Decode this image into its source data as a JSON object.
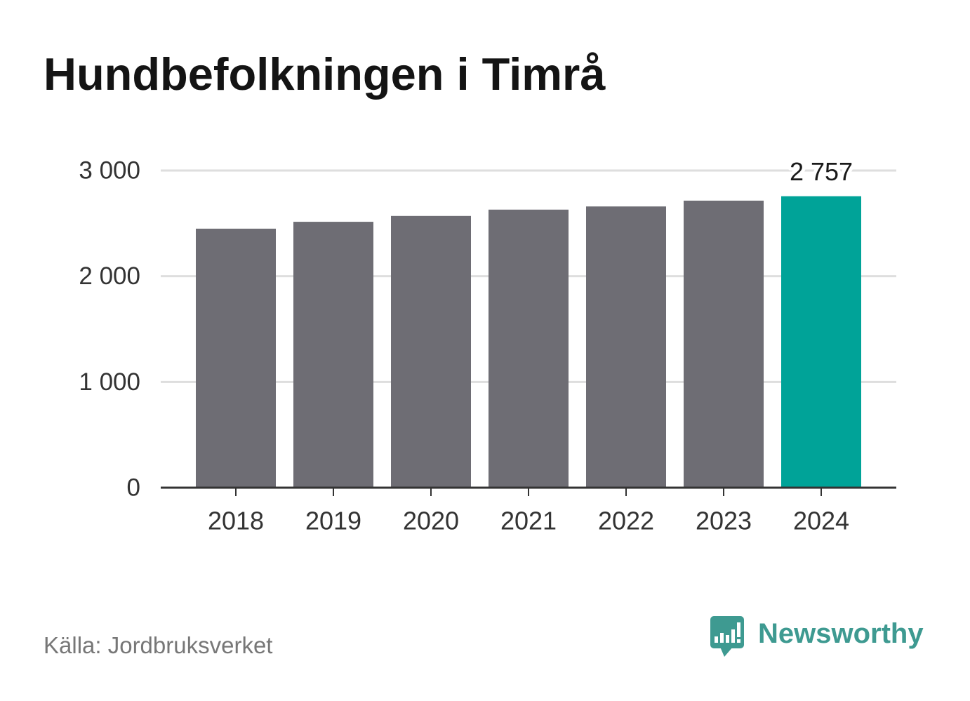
{
  "chart_data": {
    "type": "bar",
    "title": "Hundbefolkningen i Timrå",
    "categories": [
      "2018",
      "2019",
      "2020",
      "2021",
      "2022",
      "2023",
      "2024"
    ],
    "values": [
      2450,
      2515,
      2570,
      2630,
      2660,
      2715,
      2757
    ],
    "ylim": [
      0,
      3000
    ],
    "yticks": [
      0,
      1000,
      2000,
      3000
    ],
    "ytick_labels": [
      "0",
      "1 000",
      "2 000",
      "3 000"
    ],
    "highlight_category": "2024",
    "annotations": [
      {
        "category": "2024",
        "label": "2 757"
      }
    ],
    "grid": true
  },
  "footer": {
    "source": "Källa: Jordbruksverket"
  },
  "logo": {
    "text": "Newsworthy",
    "icon": "newsworthy-logo-icon"
  },
  "colors": {
    "bar": "#6e6d74",
    "highlight": "#00a398",
    "grid": "#dedede",
    "axis": "#333333",
    "brand": "#3e9a91"
  }
}
